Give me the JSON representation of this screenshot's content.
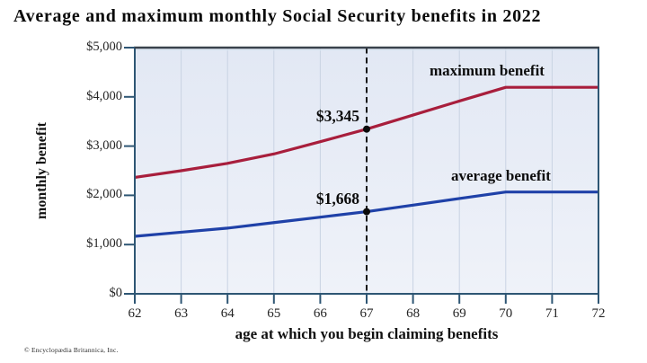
{
  "title": "Average and maximum monthly Social Security benefits in 2022",
  "copyright": "© Encyclopædia Britannica, Inc.",
  "chart_data": {
    "type": "line",
    "title": "Average and maximum monthly Social Security benefits in 2022",
    "xlabel": "age at which you begin claiming benefits",
    "ylabel": "monthly benefit",
    "x": [
      62,
      63,
      64,
      65,
      66,
      67,
      68,
      69,
      70,
      71,
      72
    ],
    "x_tick_labels": [
      "62",
      "63",
      "64",
      "65",
      "66",
      "67",
      "68",
      "69",
      "70",
      "71",
      "72"
    ],
    "xlim": [
      62,
      72
    ],
    "ylim": [
      0,
      5000
    ],
    "y_ticks": [
      0,
      1000,
      2000,
      3000,
      4000,
      5000
    ],
    "y_tick_labels": [
      "$0",
      "$1,000",
      "$2,000",
      "$3,000",
      "$4,000",
      "$5,000"
    ],
    "grid": "vertical-only",
    "legend_position": "inline-labels",
    "series": [
      {
        "name": "maximum benefit",
        "color": "#a81e3c",
        "values": [
          2364,
          2500,
          2650,
          2840,
          3090,
          3345,
          3630,
          3915,
          4194,
          4194,
          4194
        ]
      },
      {
        "name": "average benefit",
        "color": "#1f41a8",
        "values": [
          1168,
          1251,
          1334,
          1446,
          1557,
          1668,
          1801,
          1935,
          2068,
          2068,
          2068
        ]
      }
    ],
    "reference_line": {
      "x": 67,
      "style": "dashed",
      "color": "#141414"
    },
    "annotations": [
      {
        "label": "$3,345",
        "x": 67,
        "y": 3345,
        "series": "maximum benefit"
      },
      {
        "label": "$1,668",
        "x": 67,
        "y": 1668,
        "series": "average benefit"
      }
    ],
    "colors": {
      "axis": "#2e5674",
      "axis_top": "#39424c",
      "grid": "#c9d3e3",
      "plot_bg_top": "#e2e8f4",
      "plot_bg_bottom": "#eff2f9",
      "inner_highlight": "#d9e5f1",
      "marker": "#0b0b0b"
    }
  }
}
